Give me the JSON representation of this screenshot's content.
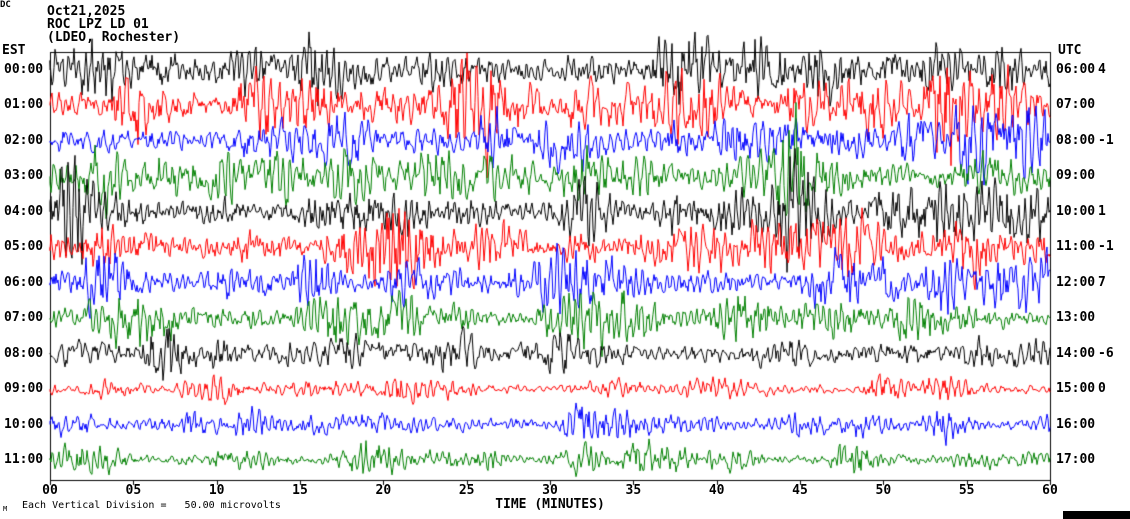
{
  "header": {
    "date": "Oct21,2025",
    "station": "ROC LPZ LD 01",
    "location": "(LDEO, Rochester)"
  },
  "axes": {
    "left_title": "EST",
    "right_title": "UTC",
    "dc_title": "DC",
    "x_axis_title": "TIME (MINUTES)",
    "x_ticks": [
      "00",
      "05",
      "10",
      "15",
      "20",
      "25",
      "30",
      "35",
      "40",
      "45",
      "50",
      "55",
      "60"
    ],
    "footnote_marker": "M",
    "footnote": "Each Vertical Division =   50.00 microvolts"
  },
  "chart_data": {
    "type": "line",
    "title": "ROC LPZ LD 01 helicorder seismogram, Oct21,2025 (LDEO, Rochester)",
    "xlabel": "TIME (MINUTES)",
    "x_range_minutes": [
      0,
      60
    ],
    "x_tick_interval_minutes": 5,
    "vertical_division_microvolts": 50.0,
    "trace_color_cycle": [
      "#000000",
      "#ff0000",
      "#0000ff",
      "#008000"
    ],
    "rows": [
      {
        "est": "00:00",
        "utc": "06:00",
        "dc": "4",
        "color": "#000000",
        "rel_amplitude": 0.85
      },
      {
        "est": "01:00",
        "utc": "07:00",
        "dc": "",
        "color": "#ff0000",
        "rel_amplitude": 0.8
      },
      {
        "est": "02:00",
        "utc": "08:00",
        "dc": "-1",
        "color": "#0000ff",
        "rel_amplitude": 0.7
      },
      {
        "est": "03:00",
        "utc": "09:00",
        "dc": "",
        "color": "#008000",
        "rel_amplitude": 0.75
      },
      {
        "est": "04:00",
        "utc": "10:00",
        "dc": "1",
        "color": "#000000",
        "rel_amplitude": 0.8
      },
      {
        "est": "05:00",
        "utc": "11:00",
        "dc": "-1",
        "color": "#ff0000",
        "rel_amplitude": 0.75
      },
      {
        "est": "06:00",
        "utc": "12:00",
        "dc": "7",
        "color": "#0000ff",
        "rel_amplitude": 0.65
      },
      {
        "est": "07:00",
        "utc": "13:00",
        "dc": "",
        "color": "#008000",
        "rel_amplitude": 0.55
      },
      {
        "est": "08:00",
        "utc": "14:00",
        "dc": "-6",
        "color": "#000000",
        "rel_amplitude": 0.5
      },
      {
        "est": "09:00",
        "utc": "15:00",
        "dc": "0",
        "color": "#ff0000",
        "rel_amplitude": 0.3
      },
      {
        "est": "10:00",
        "utc": "16:00",
        "dc": "",
        "color": "#0000ff",
        "rel_amplitude": 0.35
      },
      {
        "est": "11:00",
        "utc": "17:00",
        "dc": "",
        "color": "#008000",
        "rel_amplitude": 0.3
      }
    ]
  }
}
